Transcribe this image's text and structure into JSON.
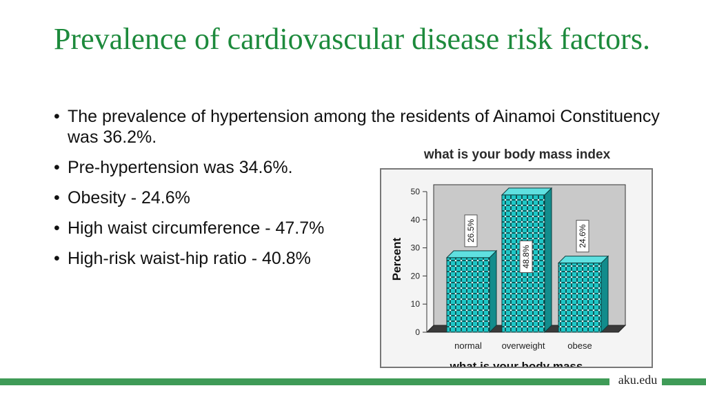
{
  "slide": {
    "title": "Prevalence of cardiovascular disease risk factors.",
    "bullets": [
      "The prevalence of hypertension among the residents of Ainamoi Constituency was 36.2%.",
      "Pre-hypertension was 34.6%.",
      "Obesity - 24.6%",
      "High waist circumference - 47.7%",
      "High-risk waist-hip ratio - 40.8%"
    ],
    "footer": "aku.edu"
  },
  "colors": {
    "title": "#1d8a3c",
    "footer_bar": "#3f9b57",
    "bar_fill": "#1fc7c7",
    "bar_side": "#128c8c"
  },
  "chart_data": {
    "type": "bar",
    "title": "what is your body mass index",
    "categories": [
      "normal",
      "overweight",
      "obese"
    ],
    "values": [
      26.5,
      48.8,
      24.6
    ],
    "data_labels": [
      "26.5%",
      "48.8%",
      "24.6%"
    ],
    "ylabel": "Percent",
    "xlabel": "what is your body mass",
    "ylim": [
      0,
      50
    ],
    "yticks": [
      0,
      10,
      20,
      30,
      40,
      50
    ],
    "grid": false,
    "legend": "none"
  }
}
